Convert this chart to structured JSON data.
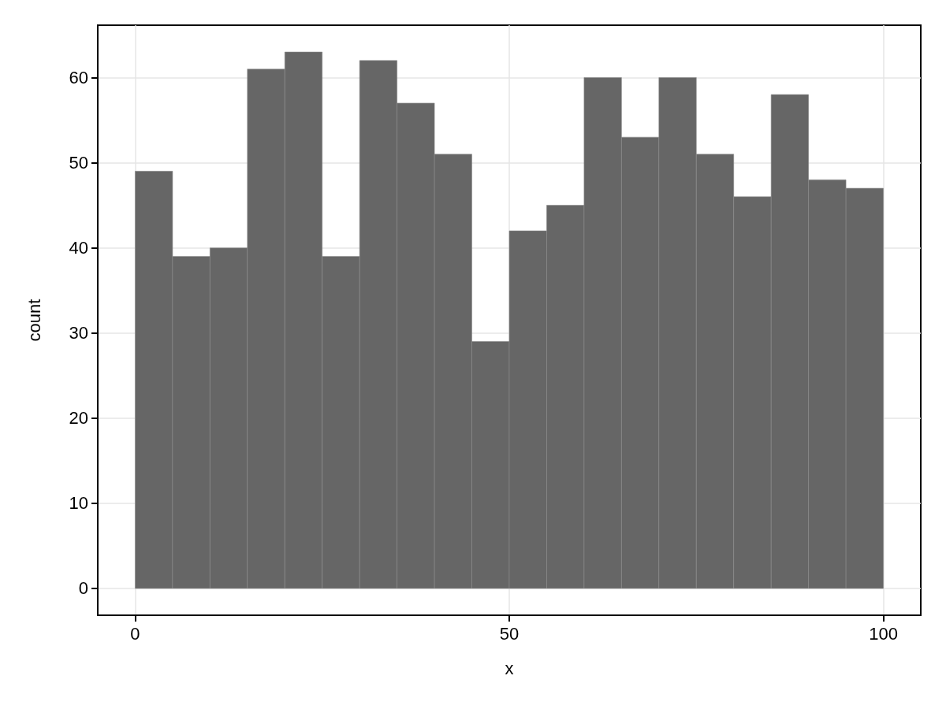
{
  "chart_data": {
    "type": "histogram",
    "xlabel": "x",
    "ylabel": "count",
    "bins": [
      0,
      5,
      10,
      15,
      20,
      25,
      30,
      35,
      40,
      45,
      50,
      55,
      60,
      65,
      70,
      75,
      80,
      85,
      90,
      95,
      100
    ],
    "values": [
      49,
      39,
      40,
      61,
      63,
      39,
      62,
      57,
      51,
      29,
      42,
      45,
      60,
      53,
      60,
      51,
      46,
      58,
      48,
      47
    ],
    "color": "#666666",
    "xlim": [
      -5,
      105
    ],
    "xticks": [
      0,
      50,
      100
    ],
    "ylim": [
      -3.15,
      66.15
    ],
    "yticks": [
      0,
      10,
      20,
      30,
      40,
      50,
      60
    ],
    "grid": true
  }
}
